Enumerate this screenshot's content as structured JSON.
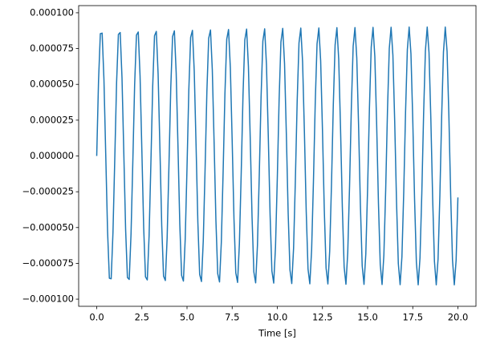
{
  "chart_data": {
    "type": "line",
    "xlabel": "Time [s]",
    "color": "#1f77b4",
    "x": [
      0,
      0.1,
      0.2,
      0.3,
      0.4,
      0.5,
      0.6,
      0.7,
      0.8,
      0.9,
      1,
      1.1,
      1.2,
      1.3,
      1.4,
      1.5,
      1.6,
      1.7,
      1.8,
      1.9,
      2,
      2.1,
      2.2,
      2.3,
      2.4,
      2.5,
      2.6,
      2.7,
      2.8,
      2.9,
      3,
      3.1,
      3.2,
      3.3,
      3.4,
      3.5,
      3.6,
      3.7,
      3.8,
      3.9,
      4,
      4.1,
      4.2,
      4.3,
      4.4,
      4.5,
      4.6,
      4.7,
      4.8,
      4.9,
      5,
      5.1,
      5.2,
      5.3,
      5.4,
      5.5,
      5.6,
      5.7,
      5.8,
      5.9,
      6,
      6.1,
      6.2,
      6.3,
      6.4,
      6.5,
      6.6,
      6.7,
      6.8,
      6.9,
      7,
      7.1,
      7.2,
      7.3,
      7.4,
      7.5,
      7.6,
      7.7,
      7.8,
      7.9,
      8,
      8.1,
      8.2,
      8.3,
      8.4,
      8.5,
      8.6,
      8.7,
      8.8,
      8.9,
      9,
      9.1,
      9.2,
      9.3,
      9.4,
      9.5,
      9.6,
      9.7,
      9.8,
      9.9,
      10,
      10.1,
      10.2,
      10.3,
      10.4,
      10.5,
      10.6,
      10.7,
      10.8,
      10.9,
      11,
      11.1,
      11.2,
      11.3,
      11.4,
      11.5,
      11.6,
      11.7,
      11.8,
      11.9,
      12,
      12.1,
      12.2,
      12.3,
      12.4,
      12.5,
      12.6,
      12.7,
      12.8,
      12.9,
      13,
      13.1,
      13.2,
      13.3,
      13.4,
      13.5,
      13.6,
      13.7,
      13.8,
      13.9,
      14,
      14.1,
      14.2,
      14.3,
      14.4,
      14.5,
      14.6,
      14.7,
      14.8,
      14.9,
      15,
      15.1,
      15.2,
      15.3,
      15.4,
      15.5,
      15.6,
      15.7,
      15.8,
      15.9,
      16,
      16.1,
      16.2,
      16.3,
      16.4,
      16.5,
      16.6,
      16.7,
      16.8,
      16.9,
      17,
      17.1,
      17.2,
      17.3,
      17.4,
      17.5,
      17.6,
      17.7,
      17.8,
      17.9,
      18,
      18.1,
      18.2,
      18.3,
      18.4,
      18.5,
      18.6,
      18.7,
      18.8,
      18.9,
      19,
      19.1,
      19.2,
      19.3,
      19.4,
      19.5,
      19.6,
      19.7,
      19.8,
      19.9,
      20
    ],
    "values": [
      0,
      5.24e-05,
      8.54e-05,
      8.58e-05,
      5.34e-05,
      6e-07,
      -5.24e-05,
      -8.54e-05,
      -8.58e-05,
      -5.34e-05,
      -2e-06,
      5.12e-05,
      8.49e-05,
      8.62e-05,
      5.45e-05,
      2e-06,
      -5.12e-05,
      -8.49e-05,
      -8.62e-05,
      -5.45e-05,
      -3.6e-06,
      4.99e-05,
      8.44e-05,
      8.66e-05,
      5.58e-05,
      3.6e-06,
      -4.99e-05,
      -8.44e-05,
      -8.66e-05,
      -5.58e-05,
      -5e-06,
      4.88e-05,
      8.39e-05,
      8.7e-05,
      5.69e-05,
      5e-06,
      -4.88e-05,
      -8.39e-05,
      -8.7e-05,
      -5.69e-05,
      -6.4e-06,
      4.76e-05,
      8.34e-05,
      8.74e-05,
      5.8e-05,
      6.4e-06,
      -4.76e-05,
      -8.34e-05,
      -8.74e-05,
      -5.8e-05,
      -8e-06,
      4.62e-05,
      8.28e-05,
      8.77e-05,
      5.92e-05,
      8e-06,
      -4.62e-05,
      -8.28e-05,
      -8.77e-05,
      -5.92e-05,
      -9.4e-06,
      4.5e-05,
      8.22e-05,
      8.8e-05,
      6.02e-05,
      9.4e-06,
      -4.5e-05,
      -8.22e-05,
      -8.8e-05,
      -6.02e-05,
      -1.08e-05,
      4.38e-05,
      8.16e-05,
      8.83e-05,
      6.13e-05,
      1.08e-05,
      -4.38e-05,
      -8.16e-05,
      -8.83e-05,
      -6.13e-05,
      -1.24e-05,
      4.24e-05,
      8.1e-05,
      8.86e-05,
      6.24e-05,
      1.24e-05,
      -4.24e-05,
      -8.1e-05,
      -8.86e-05,
      -6.24e-05,
      -1.38e-05,
      4.11e-05,
      8.03e-05,
      8.88e-05,
      6.34e-05,
      1.38e-05,
      -4.11e-05,
      -8.03e-05,
      -8.88e-05,
      -6.34e-05,
      -1.53e-05,
      3.97e-05,
      7.96e-05,
      8.91e-05,
      6.45e-05,
      1.53e-05,
      -3.97e-05,
      -7.96e-05,
      -8.91e-05,
      -6.45e-05,
      -1.67e-05,
      3.85e-05,
      7.89e-05,
      8.93e-05,
      6.55e-05,
      1.67e-05,
      -3.85e-05,
      -7.89e-05,
      -8.93e-05,
      -6.55e-05,
      -1.81e-05,
      3.72e-05,
      7.83e-05,
      8.94e-05,
      6.65e-05,
      1.81e-05,
      -3.72e-05,
      -7.83e-05,
      -8.94e-05,
      -6.65e-05,
      -1.96e-05,
      3.57e-05,
      7.75e-05,
      8.96e-05,
      6.75e-05,
      1.96e-05,
      -3.57e-05,
      -7.75e-05,
      -8.96e-05,
      -6.75e-05,
      -2.1e-05,
      3.44e-05,
      7.67e-05,
      8.97e-05,
      6.84e-05,
      2.1e-05,
      -3.44e-05,
      -7.67e-05,
      -8.97e-05,
      -6.84e-05,
      -2.24e-05,
      3.31e-05,
      7.6e-05,
      8.98e-05,
      6.93e-05,
      2.24e-05,
      -3.31e-05,
      -7.6e-05,
      -8.98e-05,
      -6.93e-05,
      -2.39e-05,
      3.17e-05,
      7.51e-05,
      8.99e-05,
      7.03e-05,
      2.39e-05,
      -3.17e-05,
      -7.51e-05,
      -8.99e-05,
      -7.03e-05,
      -2.53e-05,
      3.03e-05,
      7.43e-05,
      9e-05,
      7.12e-05,
      2.53e-05,
      -3.03e-05,
      -7.43e-05,
      -9e-05,
      -7.12e-05,
      -2.66e-05,
      2.9e-05,
      7.35e-05,
      9e-05,
      7.21e-05,
      2.66e-05,
      -2.9e-05,
      -7.35e-05,
      -9e-05,
      -7.21e-05,
      -2.81e-05,
      2.75e-05,
      7.26e-05,
      9e-05,
      7.3e-05,
      2.81e-05,
      -2.75e-05,
      -7.26e-05,
      -9e-05,
      -7.3e-05,
      -2.9e-05
    ],
    "xlim": [
      -1,
      21
    ],
    "xticks": [
      {
        "value": 0,
        "label": "0.0"
      },
      2.5,
      {
        "value": 5,
        "label": "5.0"
      },
      7.5,
      {
        "value": 10,
        "label": "10.0"
      },
      12.5,
      {
        "value": 15,
        "label": "15.0"
      },
      17.5,
      {
        "value": 20,
        "label": "20.0"
      }
    ],
    "ylim": [
      -0.000105,
      0.000105
    ],
    "yticks": [
      {
        "value": -0.0001,
        "label": "−0.000100"
      },
      {
        "value": -7.5e-05,
        "label": "−0.000075"
      },
      {
        "value": -5e-05,
        "label": "−0.000050"
      },
      {
        "value": -2.5e-05,
        "label": "−0.000025"
      },
      {
        "value": 0,
        "label": "0.000000"
      },
      {
        "value": 2.5e-05,
        "label": "0.000025"
      },
      {
        "value": 5e-05,
        "label": "0.000050"
      },
      {
        "value": 7.5e-05,
        "label": "0.000075"
      },
      {
        "value": 0.0001,
        "label": "0.000100"
      }
    ]
  }
}
